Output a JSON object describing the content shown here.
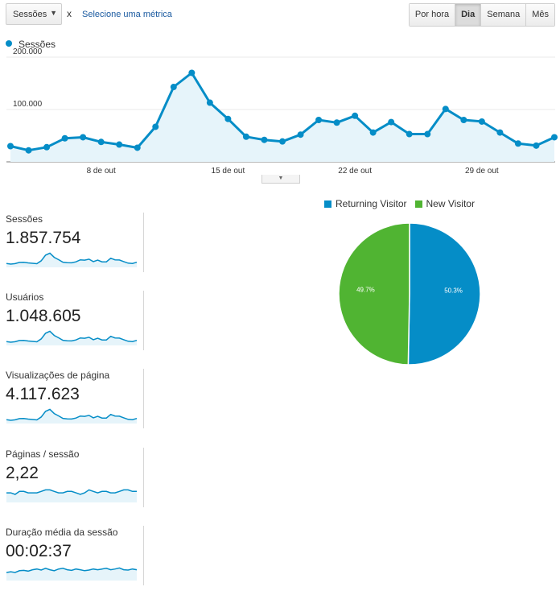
{
  "toolbar": {
    "metric_select_label": "Sessões",
    "remove_label": "x",
    "select_metric_link": "Selecione uma métrica",
    "range_buttons": [
      "Por hora",
      "Dia",
      "Semana",
      "Mês"
    ],
    "active_range": "Dia"
  },
  "colors": {
    "line": "#058dc7",
    "area": "#e6f4fa",
    "returning": "#058dc7",
    "new": "#50b432"
  },
  "chart_data": [
    {
      "type": "line",
      "series": [
        {
          "name": "Sessões",
          "values": [
            30000,
            22000,
            28000,
            45000,
            47000,
            38000,
            33000,
            27000,
            67000,
            143000,
            170000,
            113000,
            82000,
            48000,
            42000,
            39000,
            52000,
            80000,
            75000,
            88000,
            56000,
            76000,
            53000,
            53000,
            101000,
            80000,
            77000,
            56000,
            35000,
            31000,
            47000
          ]
        }
      ],
      "x_tick_labels": [
        "8 de out",
        "15 de out",
        "22 de out",
        "29 de out"
      ],
      "x_tick_indices": [
        5,
        12,
        19,
        26
      ],
      "y_tick_labels": [
        "100.000",
        "200.000"
      ],
      "y_ticks": [
        100000,
        200000
      ],
      "ylim": [
        0,
        200000
      ],
      "grid": true,
      "legend": "top-left"
    },
    {
      "type": "pie",
      "labels": [
        "Returning Visitor",
        "New Visitor"
      ],
      "values": [
        50.3,
        49.7
      ],
      "value_labels": [
        "50.3%",
        "49.7%"
      ],
      "legend": "top"
    }
  ],
  "scorecards": [
    {
      "label": "Sessões",
      "value": "1.857.754",
      "spark": [
        30,
        22,
        28,
        45,
        47,
        38,
        33,
        27,
        67,
        143,
        170,
        113,
        82,
        48,
        42,
        39,
        52,
        80,
        75,
        88,
        56,
        76,
        53,
        53,
        101,
        80,
        77,
        56,
        35,
        31,
        47
      ]
    },
    {
      "label": "Usuários",
      "value": "1.048.605",
      "spark": [
        30,
        22,
        28,
        45,
        47,
        38,
        33,
        27,
        67,
        143,
        170,
        113,
        82,
        48,
        42,
        39,
        52,
        80,
        75,
        88,
        56,
        76,
        53,
        53,
        101,
        80,
        77,
        56,
        35,
        31,
        47
      ]
    },
    {
      "label": "Visualizações de página",
      "value": "4.117.623",
      "spark": [
        30,
        22,
        28,
        45,
        47,
        38,
        33,
        27,
        67,
        143,
        170,
        113,
        82,
        48,
        42,
        39,
        52,
        80,
        75,
        88,
        56,
        76,
        53,
        53,
        101,
        80,
        77,
        56,
        35,
        31,
        47
      ]
    },
    {
      "label": "Páginas / sessão",
      "value": "2,22",
      "spark": [
        2.2,
        2.2,
        2.15,
        2.25,
        2.25,
        2.2,
        2.2,
        2.2,
        2.25,
        2.3,
        2.3,
        2.25,
        2.2,
        2.2,
        2.25,
        2.25,
        2.2,
        2.15,
        2.2,
        2.3,
        2.25,
        2.2,
        2.25,
        2.25,
        2.2,
        2.2,
        2.25,
        2.3,
        2.3,
        2.25,
        2.25
      ]
    },
    {
      "label": "Duração média da sessão",
      "value": "00:02:37",
      "spark": [
        150,
        152,
        150,
        155,
        156,
        154,
        158,
        160,
        157,
        162,
        158,
        155,
        160,
        162,
        158,
        156,
        160,
        158,
        155,
        157,
        160,
        158,
        160,
        162,
        158,
        160,
        163,
        158,
        157,
        160,
        158
      ]
    }
  ]
}
